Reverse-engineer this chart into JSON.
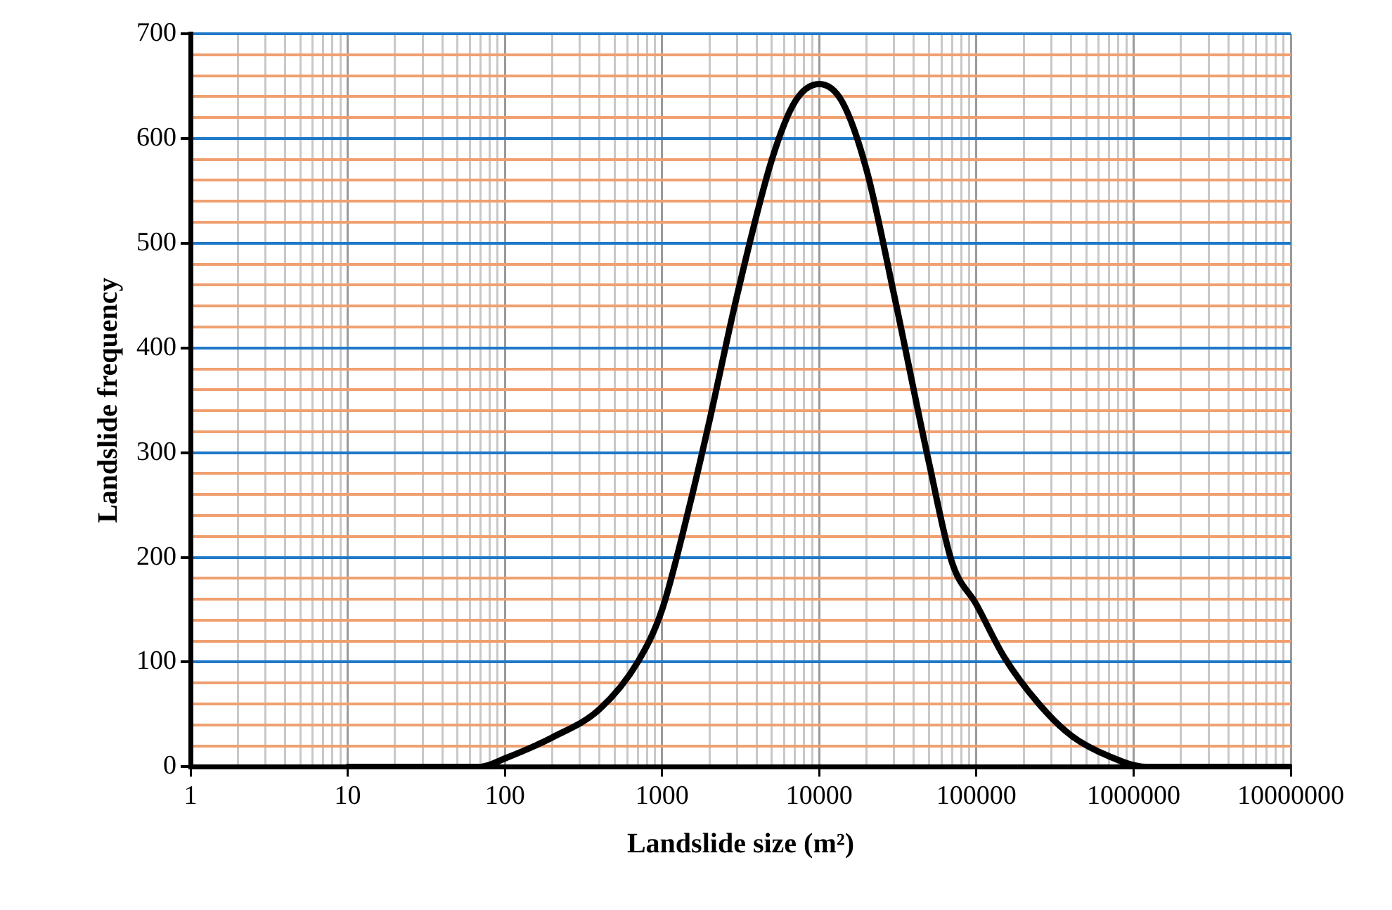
{
  "chart_data": {
    "type": "line",
    "xlabel": "Landslide size (m²)",
    "ylabel": "Landslide frequency",
    "x": [
      10,
      70,
      100,
      200,
      400,
      700,
      1000,
      1500,
      2000,
      3000,
      5000,
      7000,
      10000,
      14000,
      20000,
      30000,
      50000,
      70000,
      100000,
      150000,
      250000,
      400000,
      700000,
      1200000,
      10000000
    ],
    "series": [
      {
        "color": "#000000",
        "values": [
          0,
          0,
          8,
          28,
          55,
          100,
          150,
          250,
          330,
          450,
          580,
          635,
          652,
          635,
          570,
          450,
          290,
          195,
          155,
          105,
          60,
          30,
          10,
          0,
          0
        ]
      }
    ],
    "log": "x",
    "xlim": [
      1,
      10000000
    ],
    "xticks": [
      1,
      {
        "value": 2,
        "label": null
      },
      {
        "value": 3,
        "label": null
      },
      {
        "value": 4,
        "label": null
      },
      {
        "value": 5,
        "label": null
      },
      {
        "value": 6,
        "label": null
      },
      {
        "value": 7,
        "label": null
      },
      {
        "value": 8,
        "label": null
      },
      {
        "value": 9,
        "label": null
      },
      10,
      {
        "value": 20,
        "label": null
      },
      {
        "value": 30,
        "label": null
      },
      {
        "value": 40,
        "label": null
      },
      {
        "value": 50,
        "label": null
      },
      {
        "value": 60,
        "label": null
      },
      {
        "value": 70,
        "label": null
      },
      {
        "value": 80,
        "label": null
      },
      {
        "value": 90,
        "label": null
      },
      100,
      {
        "value": 200,
        "label": null
      },
      {
        "value": 300,
        "label": null
      },
      {
        "value": 400,
        "label": null
      },
      {
        "value": 500,
        "label": null
      },
      {
        "value": 600,
        "label": null
      },
      {
        "value": 700,
        "label": null
      },
      {
        "value": 800,
        "label": null
      },
      {
        "value": 900,
        "label": null
      },
      1000,
      {
        "value": 2000,
        "label": null
      },
      {
        "value": 3000,
        "label": null
      },
      {
        "value": 4000,
        "label": null
      },
      {
        "value": 5000,
        "label": null
      },
      {
        "value": 6000,
        "label": null
      },
      {
        "value": 7000,
        "label": null
      },
      {
        "value": 8000,
        "label": null
      },
      {
        "value": 9000,
        "label": null
      },
      10000,
      {
        "value": 20000,
        "label": null
      },
      {
        "value": 30000,
        "label": null
      },
      {
        "value": 40000,
        "label": null
      },
      {
        "value": 50000,
        "label": null
      },
      {
        "value": 60000,
        "label": null
      },
      {
        "value": 70000,
        "label": null
      },
      {
        "value": 80000,
        "label": null
      },
      {
        "value": 90000,
        "label": null
      },
      100000,
      {
        "value": 200000,
        "label": null
      },
      {
        "value": 300000,
        "label": null
      },
      {
        "value": 400000,
        "label": null
      },
      {
        "value": 500000,
        "label": null
      },
      {
        "value": 600000,
        "label": null
      },
      {
        "value": 700000,
        "label": null
      },
      {
        "value": 800000,
        "label": null
      },
      {
        "value": 900000,
        "label": null
      },
      1000000,
      {
        "value": 2000000,
        "label": null
      },
      {
        "value": 3000000,
        "label": null
      },
      {
        "value": 4000000,
        "label": null
      },
      {
        "value": 5000000,
        "label": null
      },
      {
        "value": 6000000,
        "label": null
      },
      {
        "value": 7000000,
        "label": null
      },
      {
        "value": 8000000,
        "label": null
      },
      {
        "value": 9000000,
        "label": null
      },
      10000000
    ],
    "ylim": [
      0,
      700
    ],
    "yticks": [
      0,
      {
        "value": 20,
        "label": null
      },
      {
        "value": 40,
        "label": null
      },
      {
        "value": 60,
        "label": null
      },
      {
        "value": 80,
        "label": null
      },
      100,
      {
        "value": 120,
        "label": null
      },
      {
        "value": 140,
        "label": null
      },
      {
        "value": 160,
        "label": null
      },
      {
        "value": 180,
        "label": null
      },
      200,
      {
        "value": 220,
        "label": null
      },
      {
        "value": 240,
        "label": null
      },
      {
        "value": 260,
        "label": null
      },
      {
        "value": 280,
        "label": null
      },
      300,
      {
        "value": 320,
        "label": null
      },
      {
        "value": 340,
        "label": null
      },
      {
        "value": 360,
        "label": null
      },
      {
        "value": 380,
        "label": null
      },
      400,
      {
        "value": 420,
        "label": null
      },
      {
        "value": 440,
        "label": null
      },
      {
        "value": 460,
        "label": null
      },
      {
        "value": 480,
        "label": null
      },
      500,
      {
        "value": 520,
        "label": null
      },
      {
        "value": 540,
        "label": null
      },
      {
        "value": 560,
        "label": null
      },
      {
        "value": 580,
        "label": null
      },
      600,
      {
        "value": 620,
        "label": null
      },
      {
        "value": 640,
        "label": null
      },
      {
        "value": 660,
        "label": null
      },
      {
        "value": 680,
        "label": null
      },
      700
    ],
    "grid": true,
    "legend": false,
    "marker": "none",
    "line_style": "solid"
  }
}
